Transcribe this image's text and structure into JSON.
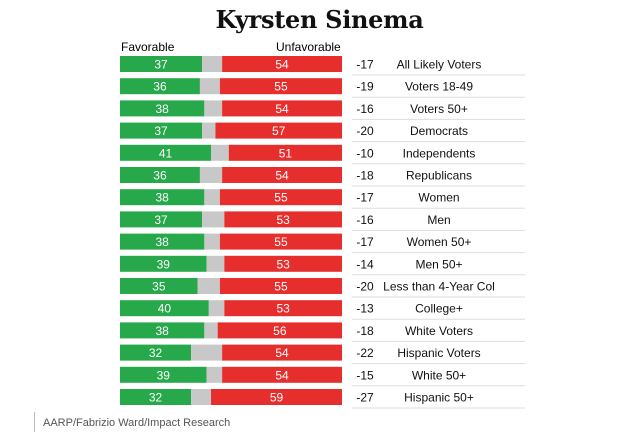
{
  "chart_data": {
    "type": "bar",
    "title": "Kyrsten Sinema",
    "legend": {
      "favorable": "Favorable",
      "unfavorable": "Unfavorable"
    },
    "colors": {
      "favorable": "#27a84a",
      "neutral": "#c8c8c8",
      "unfavorable": "#e62e2d"
    },
    "rows": [
      {
        "label": "All Likely Voters",
        "favorable": 37,
        "unfavorable": 54,
        "net": "-17"
      },
      {
        "label": "Voters 18-49",
        "favorable": 36,
        "unfavorable": 55,
        "net": "-19"
      },
      {
        "label": "Voters 50+",
        "favorable": 38,
        "unfavorable": 54,
        "net": "-16"
      },
      {
        "label": "Democrats",
        "favorable": 37,
        "unfavorable": 57,
        "net": "-20"
      },
      {
        "label": "Independents",
        "favorable": 41,
        "unfavorable": 51,
        "net": "-10"
      },
      {
        "label": "Republicans",
        "favorable": 36,
        "unfavorable": 54,
        "net": "-18"
      },
      {
        "label": "Women",
        "favorable": 38,
        "unfavorable": 55,
        "net": "-17"
      },
      {
        "label": "Men",
        "favorable": 37,
        "unfavorable": 53,
        "net": "-16"
      },
      {
        "label": "Women 50+",
        "favorable": 38,
        "unfavorable": 55,
        "net": "-17"
      },
      {
        "label": "Men 50+",
        "favorable": 39,
        "unfavorable": 53,
        "net": "-14"
      },
      {
        "label": "Less than 4-Year Col",
        "favorable": 35,
        "unfavorable": 55,
        "net": "-20"
      },
      {
        "label": "College+",
        "favorable": 40,
        "unfavorable": 53,
        "net": "-13"
      },
      {
        "label": "White Voters",
        "favorable": 38,
        "unfavorable": 56,
        "net": "-18"
      },
      {
        "label": "Hispanic Voters",
        "favorable": 32,
        "unfavorable": 54,
        "net": "-22"
      },
      {
        "label": "White 50+",
        "favorable": 39,
        "unfavorable": 54,
        "net": "-15"
      },
      {
        "label": "Hispanic 50+",
        "favorable": 32,
        "unfavorable": 59,
        "net": "-27"
      }
    ]
  },
  "source": "AARP/Fabrizio Ward/Impact Research"
}
